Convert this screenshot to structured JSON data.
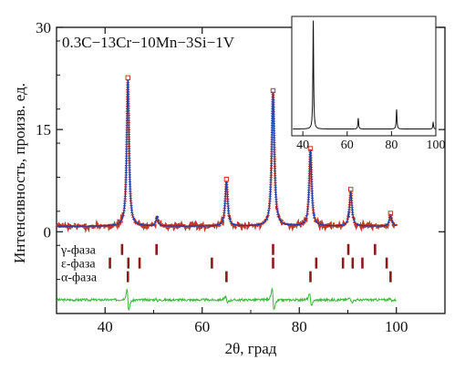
{
  "chart_data": {
    "type": "line",
    "title": "0.3C−13Cr−10Mn−3Si−1V",
    "xlabel": "2θ, град",
    "ylabel": "Интенсивность, произв. ед.",
    "xlim": [
      30,
      110
    ],
    "ylim": [
      -12,
      30
    ],
    "xticks": [
      40,
      60,
      80,
      100
    ],
    "yticks": [
      0,
      15,
      30
    ],
    "background": 0.8,
    "colors": {
      "observed": "#c0392b",
      "calculated": "#1f3fa8",
      "difference": "#3cb93c",
      "phase_ticks": "#8b1a1a",
      "axes": "#111111"
    },
    "peaks": [
      {
        "x": 44.7,
        "height": 21.5,
        "width": 0.28,
        "has_marker": true
      },
      {
        "x": 50.7,
        "height": 1.4,
        "width": 0.25,
        "has_marker": false
      },
      {
        "x": 65.0,
        "height": 6.6,
        "width": 0.3,
        "has_marker": true
      },
      {
        "x": 74.6,
        "height": 19.6,
        "width": 0.32,
        "has_marker": true
      },
      {
        "x": 82.3,
        "height": 11.1,
        "width": 0.3,
        "has_marker": true
      },
      {
        "x": 90.6,
        "height": 5.1,
        "width": 0.3,
        "has_marker": true
      },
      {
        "x": 98.8,
        "height": 1.6,
        "width": 0.3,
        "has_marker": true
      }
    ],
    "phases": [
      {
        "name": "γ-фаза",
        "level": -2.6,
        "positions": [
          43.5,
          50.6,
          74.6,
          90.1,
          95.6
        ]
      },
      {
        "name": "ε-фаза",
        "level": -4.6,
        "positions": [
          41.0,
          44.8,
          47.1,
          62.0,
          74.6,
          83.5,
          89.0,
          91.0,
          93.0,
          98.0
        ]
      },
      {
        "name": "α-фаза",
        "level": -6.6,
        "positions": [
          44.7,
          65.0,
          82.3,
          98.8
        ]
      }
    ],
    "difference_level": -10.0,
    "difference_x": [
      30,
      100
    ],
    "inset": {
      "xlim": [
        35,
        100
      ],
      "ylim": [
        0,
        100
      ],
      "xticks": [
        40,
        60,
        80,
        100
      ],
      "peaks": [
        {
          "x": 44.7,
          "height": 100
        },
        {
          "x": 65.0,
          "height": 10
        },
        {
          "x": 82.3,
          "height": 18
        },
        {
          "x": 98.8,
          "height": 6
        }
      ]
    }
  }
}
